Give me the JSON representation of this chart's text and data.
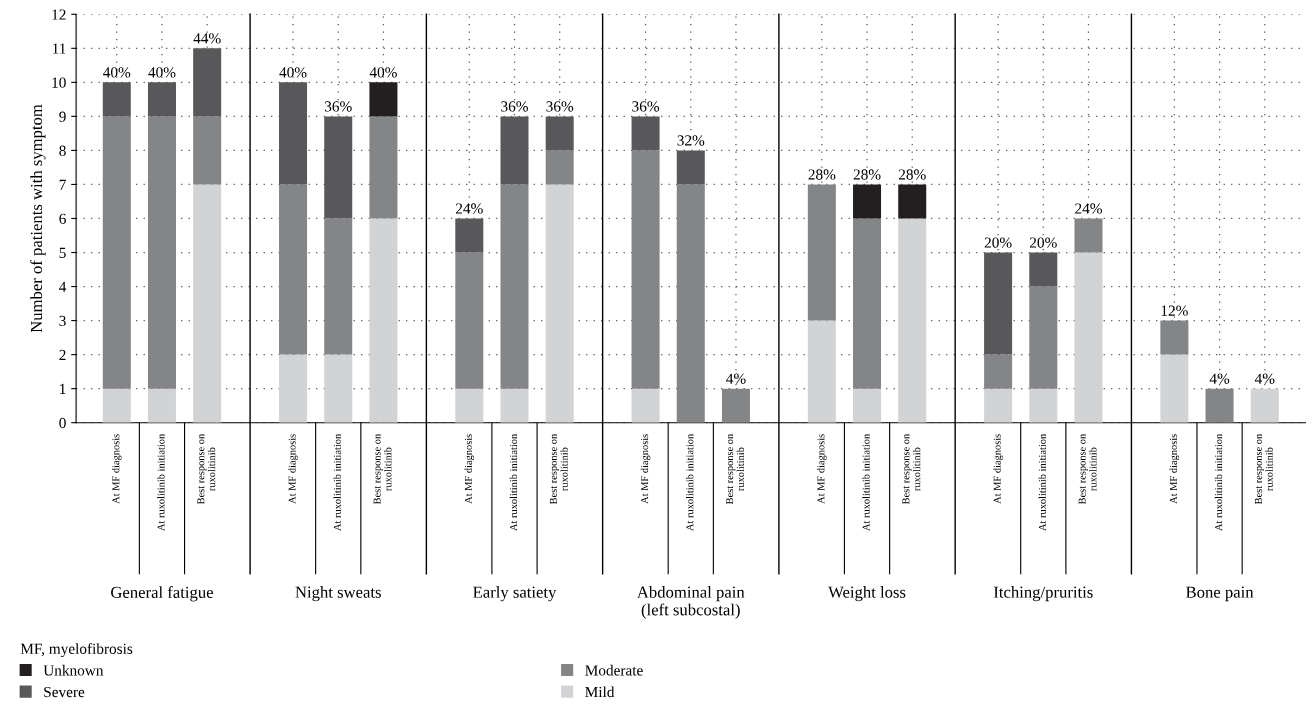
{
  "chart_data": {
    "type": "bar",
    "stacked": true,
    "ylabel": "Number of patients with symptom",
    "legend_title": "MF, myelofibrosis",
    "legend": "bottom",
    "grid": true,
    "categories": [
      "At MF diagnosis",
      "At ruxolitinib initiation",
      "Best response on\nruxolitinib",
      "At MF diagnosis",
      "At ruxolitinib initiation",
      "Best response on\nruxolitinib",
      "At MF diagnosis",
      "At ruxolitinib initiation",
      "Best response on\nruxolitinib",
      "At MF diagnosis",
      "At ruxolitinib initiation",
      "Best response on\nruxolitinib",
      "At MF diagnosis",
      "At ruxolitinib initiation",
      "Best response on\nruxolitinib",
      "At MF diagnosis",
      "At ruxolitinib initiation",
      "Best response on\nruxolitinib",
      "At MF diagnosis",
      "At ruxolitinib initiation",
      "Best response on\nruxolitinib"
    ],
    "series": [
      {
        "name": "Mild",
        "color": "#d2d3d5",
        "values": [
          1,
          1,
          7,
          2,
          2,
          6,
          1,
          1,
          7,
          1,
          0,
          0,
          3,
          1,
          6,
          1,
          1,
          5,
          2,
          0,
          1
        ]
      },
      {
        "name": "Moderate",
        "color": "#848587",
        "values": [
          8,
          8,
          2,
          5,
          4,
          3,
          4,
          6,
          1,
          7,
          7,
          1,
          4,
          5,
          0,
          1,
          3,
          1,
          1,
          1,
          0
        ]
      },
      {
        "name": "Severe",
        "color": "#58585a",
        "values": [
          1,
          1,
          2,
          3,
          3,
          0,
          1,
          2,
          1,
          1,
          1,
          0,
          0,
          0,
          0,
          3,
          1,
          0,
          0,
          0,
          0
        ]
      },
      {
        "name": "Unknown",
        "color": "#231f20",
        "values": [
          0,
          0,
          0,
          0,
          0,
          1,
          0,
          0,
          0,
          0,
          0,
          0,
          0,
          1,
          1,
          0,
          0,
          0,
          0,
          0,
          0
        ]
      }
    ],
    "ylim": [
      0,
      12
    ],
    "yticks": [
      0,
      1,
      2,
      3,
      4,
      5,
      6,
      7,
      8,
      9,
      10,
      11,
      12
    ],
    "annotations": [
      {
        "text": "40%",
        "y": 10
      },
      {
        "text": "40%",
        "y": 10
      },
      {
        "text": "44%",
        "y": 11
      },
      {
        "text": "40%",
        "y": 10
      },
      {
        "text": "36%",
        "y": 9
      },
      {
        "text": "40%",
        "y": 10
      },
      {
        "text": "24%",
        "y": 6
      },
      {
        "text": "36%",
        "y": 9
      },
      {
        "text": "36%",
        "y": 9
      },
      {
        "text": "36%",
        "y": 9
      },
      {
        "text": "32%",
        "y": 8
      },
      {
        "text": "4%",
        "y": 1
      },
      {
        "text": "28%",
        "y": 7
      },
      {
        "text": "28%",
        "y": 7
      },
      {
        "text": "28%",
        "y": 7
      },
      {
        "text": "20%",
        "y": 5
      },
      {
        "text": "20%",
        "y": 5
      },
      {
        "text": "24%",
        "y": 6
      },
      {
        "text": "12%",
        "y": 3
      },
      {
        "text": "4%",
        "y": 1
      },
      {
        "text": "4%",
        "y": 1
      },
      "General fatigue",
      "Night sweats",
      "Early satiety",
      "Abdominal pain\n(left subcostal)",
      "Weight loss",
      "Itching/pruritis",
      "Bone pain"
    ]
  }
}
